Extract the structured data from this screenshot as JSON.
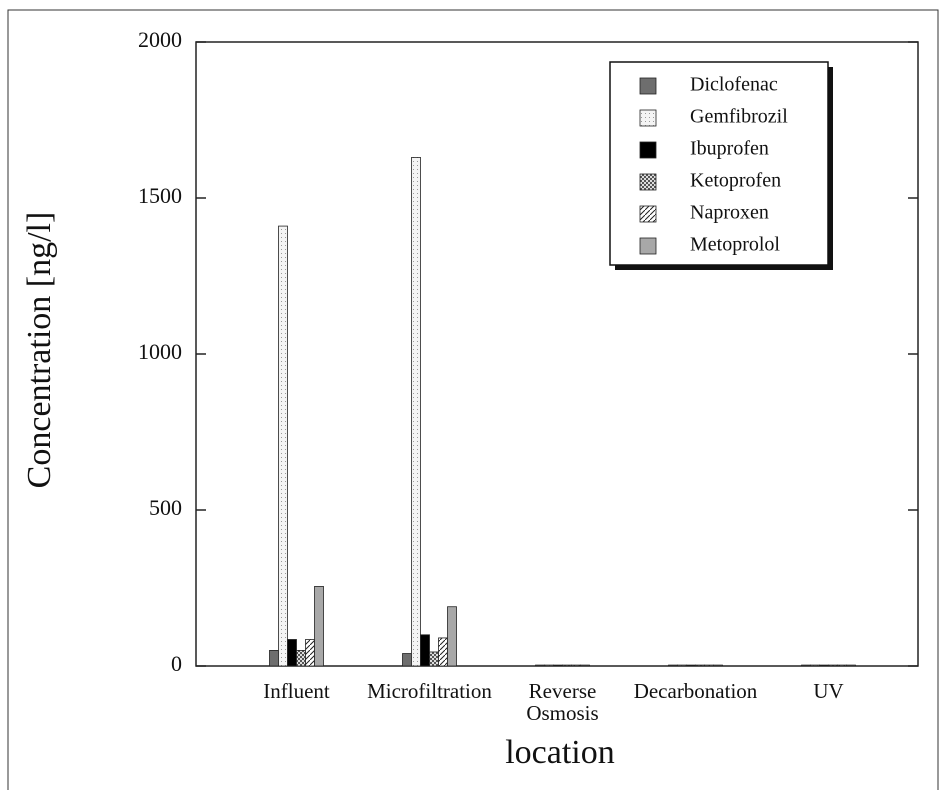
{
  "chart_data": {
    "type": "bar",
    "x_label": "location",
    "y_label": "Concentration [ng/l]",
    "categories": [
      "Influent",
      "Microfiltration",
      "Reverse\nOsmosis",
      "Decarbonation",
      "UV"
    ],
    "series": [
      {
        "name": "Diclofenac",
        "color": "#6e6e6e",
        "values": [
          50,
          40,
          3,
          3,
          3
        ]
      },
      {
        "name": "Gemfibrozil",
        "color": "#f0f0f0",
        "pattern": "dots",
        "values": [
          1410,
          1630,
          3,
          3,
          3
        ]
      },
      {
        "name": "Ibuprofen",
        "color": "#000000",
        "values": [
          85,
          100,
          3,
          3,
          3
        ]
      },
      {
        "name": "Ketoprofen",
        "color": "#8a8a8a",
        "pattern": "checker",
        "values": [
          50,
          45,
          3,
          3,
          3
        ]
      },
      {
        "name": "Naproxen",
        "color": "#ffffff",
        "pattern": "hatch",
        "values": [
          85,
          90,
          3,
          3,
          3
        ]
      },
      {
        "name": "Metoprolol",
        "color": "#a8a8a8",
        "values": [
          255,
          190,
          3,
          3,
          3
        ]
      }
    ],
    "ylim": [
      0,
      2000
    ],
    "yticks": [
      0,
      500,
      1000,
      1500,
      2000
    ],
    "legend": "upper right"
  }
}
